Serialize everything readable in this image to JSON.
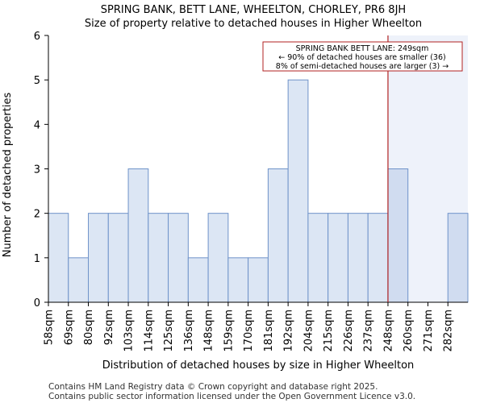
{
  "chart_data": {
    "type": "bar",
    "title": "SPRING BANK, BETT LANE, WHEELTON, CHORLEY, PR6 8JH",
    "subtitle": "Size of property relative to detached houses in Higher Wheelton",
    "xlabel": "Distribution of detached houses by size in Higher Wheelton",
    "ylabel": "Number of detached properties",
    "ylim": [
      0,
      6
    ],
    "yticks": [
      "0",
      "1",
      "2",
      "3",
      "4",
      "5",
      "6"
    ],
    "categories": [
      "58sqm",
      "69sqm",
      "80sqm",
      "92sqm",
      "103sqm",
      "114sqm",
      "125sqm",
      "136sqm",
      "148sqm",
      "159sqm",
      "170sqm",
      "181sqm",
      "192sqm",
      "204sqm",
      "215sqm",
      "226sqm",
      "237sqm",
      "248sqm",
      "260sqm",
      "271sqm",
      "282sqm"
    ],
    "values": [
      2,
      1,
      2,
      2,
      3,
      2,
      2,
      1,
      2,
      1,
      1,
      3,
      5,
      2,
      2,
      2,
      2,
      3,
      0,
      0,
      2
    ],
    "highlight_from_index": 17,
    "marker_bin_index": 17,
    "marker_value_sqm": 249,
    "annotation": [
      "SPRING BANK BETT LANE: 249sqm",
      "← 90% of detached houses are smaller (36)",
      "8% of semi-detached houses are larger (3) →"
    ],
    "colors": {
      "bar_fill": "#dce6f4",
      "bar_fill_highlight": "#d0dcf0",
      "bar_stroke": "#6f93c9",
      "highlight_region": "#eef2fa",
      "marker_line": "#b22222"
    }
  },
  "footer": {
    "line1": "Contains HM Land Registry data © Crown copyright and database right 2025.",
    "line2": "Contains public sector information licensed under the Open Government Licence v3.0."
  }
}
